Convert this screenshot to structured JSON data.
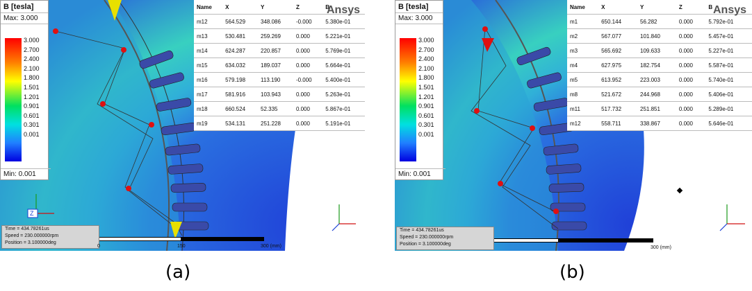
{
  "panels": [
    {
      "id": "a",
      "caption": "(a)",
      "legend": {
        "title": "B [tesla]",
        "max": "Max: 3.000",
        "min": "Min: 0.001",
        "ticks": [
          "3.000",
          "2.700",
          "2.400",
          "2.100",
          "1.800",
          "1.501",
          "1.201",
          "0.901",
          "0.601",
          "0.301",
          "0.001"
        ]
      },
      "table": {
        "headers": [
          "Name",
          "X",
          "Y",
          "Z",
          "B"
        ],
        "rows": [
          [
            "m12",
            "564.529",
            "348.086",
            "-0.000",
            "5.380e-01"
          ],
          [
            "m13",
            "530.481",
            "259.269",
            "0.000",
            "5.221e-01"
          ],
          [
            "m14",
            "624.287",
            "220.857",
            "0.000",
            "5.769e-01"
          ],
          [
            "m15",
            "634.032",
            "189.037",
            "0.000",
            "5.664e-01"
          ],
          [
            "m16",
            "579.198",
            "113.190",
            "-0.000",
            "5.400e-01"
          ],
          [
            "m17",
            "581.916",
            "103.943",
            "0.000",
            "5.263e-01"
          ],
          [
            "m18",
            "660.524",
            "52.335",
            "0.000",
            "5.867e-01"
          ],
          [
            "m19",
            "534.131",
            "251.228",
            "0.000",
            "5.191e-01"
          ]
        ]
      },
      "brand": "Ansys",
      "info": {
        "time": "Time     = 434.78261us",
        "speed": "Speed    = 230.000000rpm",
        "position": "Position = 3.100000deg"
      },
      "scale": {
        "zero": "0",
        "mid": "150",
        "end": "300 (mm)"
      }
    },
    {
      "id": "b",
      "caption": "(b)",
      "legend": {
        "title": "B [tesla]",
        "max": "Max: 3.000",
        "min": "Min: 0.001",
        "ticks": [
          "3.000",
          "2.700",
          "2.400",
          "2.100",
          "1.800",
          "1.501",
          "1.201",
          "0.901",
          "0.601",
          "0.301",
          "0.001"
        ]
      },
      "table": {
        "headers": [
          "Name",
          "X",
          "Y",
          "Z",
          "B"
        ],
        "rows": [
          [
            "m1",
            "650.144",
            "56.282",
            "0.000",
            "5.792e-01"
          ],
          [
            "m2",
            "567.077",
            "101.840",
            "0.000",
            "5.457e-01"
          ],
          [
            "m3",
            "565.692",
            "109.633",
            "0.000",
            "5.227e-01"
          ],
          [
            "m4",
            "627.975",
            "182.754",
            "0.000",
            "5.587e-01"
          ],
          [
            "m5",
            "613.952",
            "223.003",
            "0.000",
            "5.740e-01"
          ],
          [
            "m8",
            "521.672",
            "244.968",
            "0.000",
            "5.406e-01"
          ],
          [
            "m11",
            "517.732",
            "251.851",
            "0.000",
            "5.289e-01"
          ],
          [
            "m12",
            "558.711",
            "338.867",
            "0.000",
            "5.646e-01"
          ]
        ]
      },
      "brand": "Ansys",
      "info": {
        "time": "Time     = 434.78261us",
        "speed": "Speed    = 230.000000rpm",
        "position": "Position = 3.100000deg"
      },
      "scale": {
        "end": "300 (mm)"
      }
    }
  ],
  "colors": {
    "field_low": "#1a3fd4",
    "field_mid": "#22c9c9",
    "field_high": "#e8e800",
    "peak": "#e01010"
  }
}
